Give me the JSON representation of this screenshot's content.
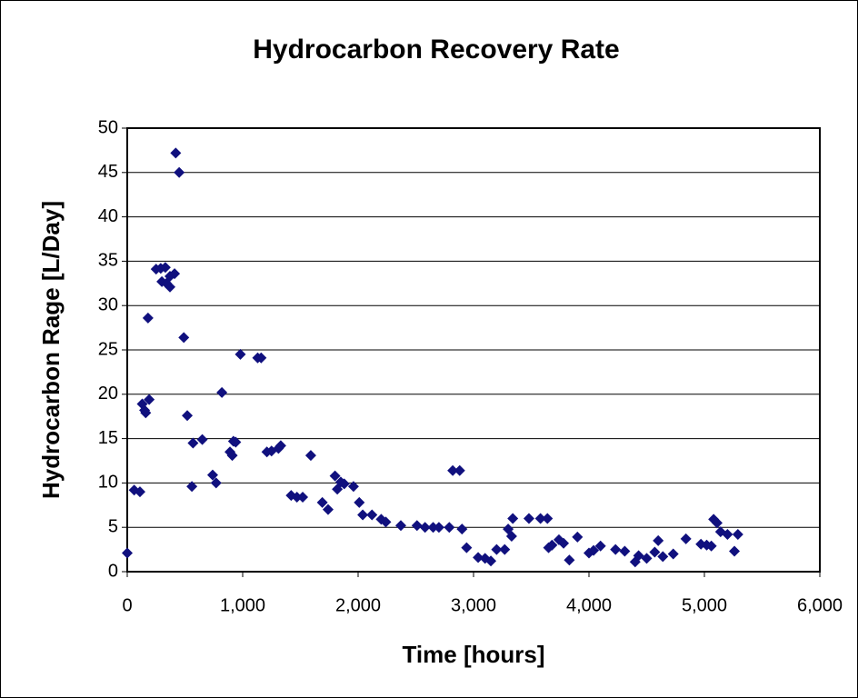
{
  "chart_data": {
    "type": "scatter",
    "title": "Hydrocarbon Recovery Rate",
    "x_label": "Time [hours]",
    "y_label": "Hydrocarbon Rage [L/Day]",
    "color": "#10107e",
    "x": [
      0,
      60,
      110,
      130,
      150,
      160,
      190,
      180,
      250,
      290,
      300,
      330,
      340,
      370,
      370,
      410,
      420,
      450,
      490,
      520,
      560,
      570,
      650,
      740,
      770,
      820,
      890,
      910,
      920,
      940,
      980,
      1130,
      1160,
      1210,
      1250,
      1310,
      1330,
      1420,
      1470,
      1520,
      1590,
      1690,
      1740,
      1800,
      1820,
      1850,
      1880,
      1960,
      2010,
      2040,
      2120,
      2200,
      2240,
      2370,
      2510,
      2580,
      2650,
      2700,
      2790,
      2820,
      2880,
      2900,
      2940,
      3040,
      3100,
      3150,
      3200,
      3270,
      3300,
      3330,
      3340,
      3480,
      3580,
      3640,
      3650,
      3680,
      3740,
      3780,
      3830,
      3900,
      4000,
      4040,
      4100,
      4230,
      4310,
      4400,
      4430,
      4500,
      4570,
      4600,
      4640,
      4730,
      4840,
      4970,
      5020,
      5060,
      5080,
      5110,
      5140,
      5200,
      5260,
      5290
    ],
    "values": [
      2.1,
      9.2,
      9.0,
      18.9,
      18.2,
      17.9,
      19.4,
      28.6,
      34.1,
      34.2,
      32.7,
      34.3,
      32.5,
      32.1,
      33.3,
      33.6,
      47.2,
      45.0,
      26.4,
      17.6,
      9.6,
      14.5,
      14.9,
      10.9,
      10.0,
      20.2,
      13.5,
      13.1,
      14.7,
      14.6,
      24.5,
      24.1,
      24.1,
      13.5,
      13.6,
      13.9,
      14.2,
      8.6,
      8.4,
      8.4,
      13.1,
      7.8,
      7.0,
      10.8,
      9.3,
      10.1,
      9.9,
      9.6,
      7.8,
      6.4,
      6.4,
      5.9,
      5.6,
      5.2,
      5.2,
      5.0,
      5.0,
      5.0,
      5.0,
      11.4,
      11.4,
      4.8,
      2.7,
      1.6,
      1.5,
      1.2,
      2.5,
      2.5,
      4.8,
      4.0,
      6.0,
      6.0,
      6.0,
      6.0,
      2.7,
      3.0,
      3.6,
      3.2,
      1.3,
      3.9,
      2.1,
      2.4,
      2.9,
      2.5,
      2.3,
      1.1,
      1.8,
      1.5,
      2.2,
      3.5,
      1.7,
      2.0,
      3.7,
      3.1,
      3.0,
      2.9,
      5.9,
      5.5,
      4.5,
      4.2,
      2.3,
      4.2
    ],
    "xlim": [
      0,
      6000
    ],
    "xticks": [
      0,
      {
        "value": 1000,
        "label": "1,000"
      },
      {
        "value": 2000,
        "label": "2,000"
      },
      {
        "value": 3000,
        "label": "3,000"
      },
      {
        "value": 4000,
        "label": "4,000"
      },
      {
        "value": 5000,
        "label": "5,000"
      },
      {
        "value": 6000,
        "label": "6,000"
      }
    ],
    "ylim": [
      0,
      50
    ],
    "yticks": [
      0,
      5,
      10,
      15,
      20,
      25,
      30,
      35,
      40,
      45,
      50
    ],
    "grid": true
  }
}
